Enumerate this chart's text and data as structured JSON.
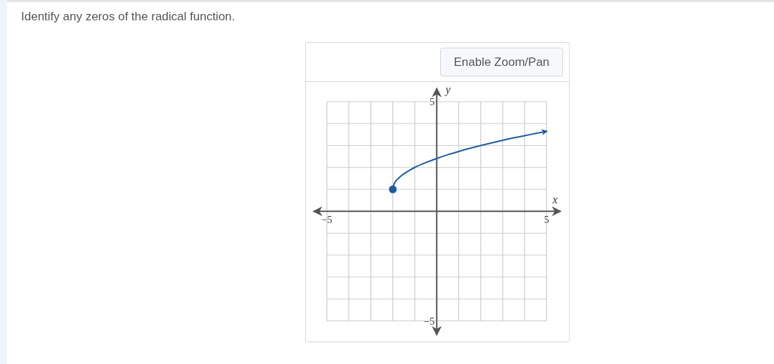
{
  "chart_data": {
    "type": "line",
    "title": "Identify any zeros of the radical function.",
    "xlabel": "x",
    "ylabel": "y",
    "x": [
      -2,
      -1.95,
      -1.9,
      -1.8,
      -1.6,
      -1.4,
      -1.2,
      -1,
      -0.5,
      0,
      0.5,
      1,
      1.5,
      2,
      2.5,
      3,
      3.5,
      4,
      4.5,
      5
    ],
    "series": [
      {
        "color": "#1d5a9e",
        "values": [
          1,
          1.22,
          1.32,
          1.45,
          1.63,
          1.77,
          1.89,
          2,
          2.22,
          2.41,
          2.58,
          2.73,
          2.87,
          3,
          3.12,
          3.24,
          3.35,
          3.45,
          3.55,
          3.65
        ]
      },
      {
        "type": "scatter",
        "color": "#1d5a9e",
        "marker": "circle",
        "x": [
          -2
        ],
        "values": [
          1
        ]
      }
    ],
    "xlim": [
      -5,
      5
    ],
    "ylim": [
      -5,
      5
    ],
    "xticks": [
      -5,
      {
        "value": -4,
        "label": null
      },
      {
        "value": -3,
        "label": null
      },
      {
        "value": -2,
        "label": null
      },
      {
        "value": -1,
        "label": null
      },
      {
        "value": 0,
        "label": null
      },
      {
        "value": 1,
        "label": null
      },
      {
        "value": 2,
        "label": null
      },
      {
        "value": 3,
        "label": null
      },
      {
        "value": 4,
        "label": null
      },
      5
    ],
    "yticks": [
      -5,
      {
        "value": -4,
        "label": null
      },
      {
        "value": -3,
        "label": null
      },
      {
        "value": -2,
        "label": null
      },
      {
        "value": -1,
        "label": null
      },
      {
        "value": 0,
        "label": null
      },
      {
        "value": 1,
        "label": null
      },
      {
        "value": 2,
        "label": null
      },
      {
        "value": 3,
        "label": null
      },
      {
        "value": 4,
        "label": null
      },
      5
    ],
    "grid": true,
    "annotations": [
      "Enable Zoom/Pan"
    ]
  }
}
